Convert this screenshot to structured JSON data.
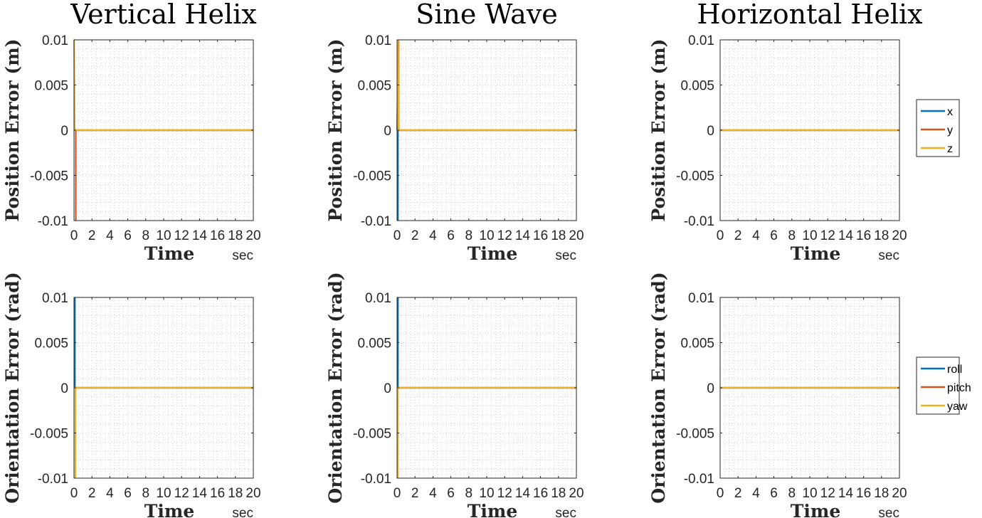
{
  "colors": {
    "blue": "#0072BD",
    "orange": "#D95319",
    "yellow": "#EDB120",
    "grid": "#c8c8c8",
    "axis": "#262626"
  },
  "legends": {
    "position": [
      "x",
      "y",
      "z"
    ],
    "orientation": [
      "roll",
      "pitch",
      "yaw"
    ]
  },
  "chart_data": [
    {
      "type": "line",
      "title": "Vertical Helix",
      "ylabel": "Position Error (m)",
      "xlabel": "Time",
      "xunit": "sec",
      "xlim": [
        0,
        20
      ],
      "ylim": [
        -0.01,
        0.01
      ],
      "xticks": [
        "0",
        "2",
        "4",
        "6",
        "8",
        "10",
        "12",
        "14",
        "16",
        "18",
        "20"
      ],
      "yticks": [
        "0.01",
        "0.005",
        "0",
        "-0.005",
        "-0.01"
      ],
      "grid": "minor",
      "series": [
        {
          "color": "#0072BD",
          "x": [
            0,
            0.05,
            0.2,
            20
          ],
          "y": [
            0,
            0,
            0,
            0
          ]
        },
        {
          "color": "#D95319",
          "x": [
            0.2,
            0.2,
            0.25,
            20
          ],
          "y": [
            -0.01,
            0,
            0,
            0
          ]
        },
        {
          "color": "#EDB120",
          "x": [
            0,
            0.02,
            0.08,
            20
          ],
          "y": [
            0.01,
            0.01,
            0,
            0
          ]
        }
      ]
    },
    {
      "type": "line",
      "title": "Sine Wave",
      "ylabel": "Position Error (m)",
      "xlabel": "Time",
      "xunit": "sec",
      "xlim": [
        0,
        20
      ],
      "ylim": [
        -0.01,
        0.01
      ],
      "xticks": [
        "0",
        "2",
        "4",
        "6",
        "8",
        "10",
        "12",
        "14",
        "16",
        "18",
        "20"
      ],
      "yticks": [
        "0.01",
        "0.005",
        "0",
        "-0.005",
        "-0.01"
      ],
      "grid": "minor",
      "series": [
        {
          "color": "#0072BD",
          "x": [
            0.1,
            0.1,
            0.2,
            20
          ],
          "y": [
            -0.01,
            0,
            0,
            0
          ]
        },
        {
          "color": "#D95319",
          "x": [
            0,
            0.15,
            0.2,
            20
          ],
          "y": [
            0,
            0.01,
            0,
            0
          ]
        },
        {
          "color": "#EDB120",
          "x": [
            0.05,
            0.1,
            0.2,
            20
          ],
          "y": [
            0,
            0.01,
            0,
            0
          ]
        }
      ]
    },
    {
      "type": "line",
      "title": "Horizontal Helix",
      "ylabel": "Position Error (m)",
      "xlabel": "Time",
      "xunit": "sec",
      "xlim": [
        0,
        20
      ],
      "ylim": [
        -0.01,
        0.01
      ],
      "xticks": [
        "0",
        "2",
        "4",
        "6",
        "8",
        "10",
        "12",
        "14",
        "16",
        "18",
        "20"
      ],
      "yticks": [
        "0.01",
        "0.005",
        "0",
        "-0.005",
        "-0.01"
      ],
      "grid": "minor",
      "legend": "position",
      "series": [
        {
          "name": "x",
          "color": "#0072BD",
          "x": [
            0,
            20
          ],
          "y": [
            0,
            0
          ]
        },
        {
          "name": "y",
          "color": "#D95319",
          "x": [
            0,
            20
          ],
          "y": [
            0,
            0
          ]
        },
        {
          "name": "z",
          "color": "#EDB120",
          "x": [
            0,
            20
          ],
          "y": [
            0,
            0
          ]
        }
      ]
    },
    {
      "type": "line",
      "title": "",
      "ylabel": "Orientation Error (rad)",
      "xlabel": "Time",
      "xunit": "sec",
      "xlim": [
        0,
        20
      ],
      "ylim": [
        -0.01,
        0.01
      ],
      "xticks": [
        "0",
        "2",
        "4",
        "6",
        "8",
        "10",
        "12",
        "14",
        "16",
        "18",
        "20"
      ],
      "yticks": [
        "0.01",
        "0.005",
        "0",
        "-0.005",
        "-0.01"
      ],
      "grid": "minor",
      "series": [
        {
          "color": "#0072BD",
          "x": [
            0.1,
            0.1,
            0.2,
            20
          ],
          "y": [
            0.01,
            0,
            0,
            0
          ]
        },
        {
          "color": "#D95319",
          "x": [
            0,
            0.2,
            20
          ],
          "y": [
            0,
            0,
            0
          ]
        },
        {
          "color": "#EDB120",
          "x": [
            0.15,
            0.15,
            0.25,
            20
          ],
          "y": [
            -0.01,
            0,
            0,
            0
          ]
        }
      ]
    },
    {
      "type": "line",
      "title": "",
      "ylabel": "Orientation Error (rad)",
      "xlabel": "Time",
      "xunit": "sec",
      "xlim": [
        0,
        20
      ],
      "ylim": [
        -0.01,
        0.01
      ],
      "xticks": [
        "0",
        "2",
        "4",
        "6",
        "8",
        "10",
        "12",
        "14",
        "16",
        "18",
        "20"
      ],
      "yticks": [
        "0.01",
        "0.005",
        "0",
        "-0.005",
        "-0.01"
      ],
      "grid": "minor",
      "series": [
        {
          "color": "#0072BD",
          "x": [
            0.1,
            0.1,
            0.2,
            20
          ],
          "y": [
            0.01,
            0,
            0,
            0
          ]
        },
        {
          "color": "#D95319",
          "x": [
            0,
            0.2,
            20
          ],
          "y": [
            0,
            0,
            0
          ]
        },
        {
          "color": "#EDB120",
          "x": [
            0.1,
            0.1,
            0.2,
            20
          ],
          "y": [
            -0.01,
            0,
            0,
            0
          ]
        }
      ]
    },
    {
      "type": "line",
      "title": "",
      "ylabel": "Orientation Error (rad)",
      "xlabel": "Time",
      "xunit": "sec",
      "xlim": [
        0,
        20
      ],
      "ylim": [
        -0.01,
        0.01
      ],
      "xticks": [
        "0",
        "2",
        "4",
        "6",
        "8",
        "10",
        "12",
        "14",
        "16",
        "18",
        "20"
      ],
      "yticks": [
        "0.01",
        "0.005",
        "0",
        "-0.005",
        "-0.01"
      ],
      "grid": "minor",
      "legend": "orientation",
      "series": [
        {
          "name": "roll",
          "color": "#0072BD",
          "x": [
            0,
            20
          ],
          "y": [
            0,
            0
          ]
        },
        {
          "name": "pitch",
          "color": "#D95319",
          "x": [
            0,
            20
          ],
          "y": [
            0,
            0
          ]
        },
        {
          "name": "yaw",
          "color": "#EDB120",
          "x": [
            0,
            20
          ],
          "y": [
            0,
            0
          ]
        }
      ]
    }
  ]
}
